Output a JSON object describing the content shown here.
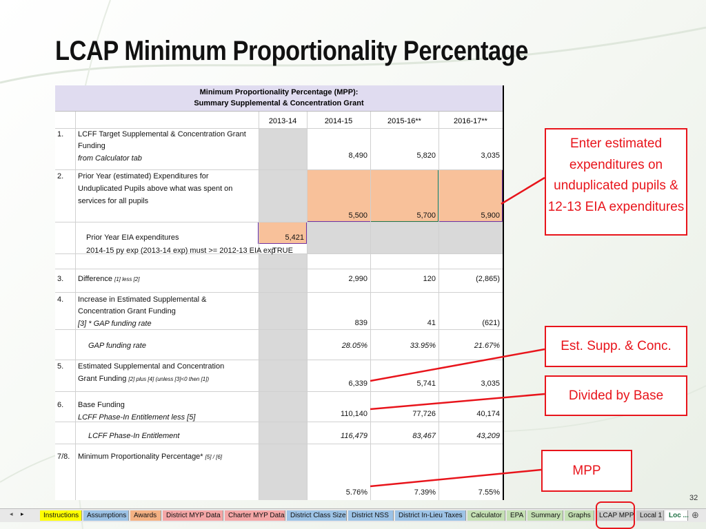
{
  "slide": {
    "title": "LCAP Minimum Proportionality Percentage",
    "page_number": "32"
  },
  "sheet": {
    "header_line1": "Minimum Proportionality Percentage (MPP):",
    "header_line2": "Summary Supplemental & Concentration Grant",
    "columns": [
      "2013-14",
      "2014-15",
      "2015-16**",
      "2016-17**"
    ],
    "rows": {
      "r1": {
        "num": "1.",
        "label1": "LCFF Target Supplemental & Concentration Grant",
        "label2": "Funding",
        "note": "from Calculator tab",
        "v2": "8,490",
        "v3": "5,820",
        "v4": "3,035"
      },
      "r2": {
        "num": "2.",
        "label1": "Prior Year (estimated) Expenditures for",
        "label2": "Unduplicated Pupils above what was spent on",
        "label3": "services for all pupils",
        "v2": "5,500",
        "v3": "5,700",
        "v4": "5,900"
      },
      "eia": {
        "label": "Prior Year EIA expenditures",
        "v1": "5,421",
        "note": "2014-15 py exp (2013-14 exp) must >= 2012-13 EIA exp",
        "check": "TRUE"
      },
      "r3": {
        "num": "3.",
        "label": "Difference",
        "note": "[1] less [2]",
        "v2": "2,990",
        "v3": "120",
        "v4": "(2,865)"
      },
      "r4": {
        "num": "4.",
        "label1": "Increase in Estimated Supplemental &",
        "label2": "Concentration Grant Funding",
        "note": "[3] * GAP funding rate",
        "v2": "839",
        "v3": "41",
        "v4": "(621)"
      },
      "gap": {
        "label": "GAP funding rate",
        "v2": "28.05%",
        "v3": "33.95%",
        "v4": "21.67%"
      },
      "r5": {
        "num": "5.",
        "label1": "Estimated Supplemental and Concentration",
        "label2": "Grant Funding",
        "note": "[2] plus [4] (unless [3]<0 then [1])",
        "v2": "6,339",
        "v3": "5,741",
        "v4": "3,035"
      },
      "r6": {
        "num": "6.",
        "label": "Base Funding",
        "note": "LCFF Phase-In Entitlement less [5]",
        "v2": "110,140",
        "v3": "77,726",
        "v4": "40,174"
      },
      "phase": {
        "label": "LCFF Phase-In Entitlement",
        "v2": "116,479",
        "v3": "83,467",
        "v4": "43,209"
      },
      "r7": {
        "num": "7/8.",
        "label": "Minimum Proportionality Percentage*",
        "note": "[5] / [6]",
        "v2": "5.76%",
        "v3": "7.39%",
        "v4": "7.55%"
      }
    }
  },
  "callouts": {
    "enter": "Enter estimated expenditures on unduplicated pupils & 12-13 EIA expenditures",
    "est": "Est. Supp. & Conc.",
    "divided": "Divided by Base",
    "mpp": "MPP"
  },
  "tabs": [
    {
      "label": "Instructions",
      "color": "#ffff00"
    },
    {
      "label": "Assumptions",
      "color": "#9dc3e6"
    },
    {
      "label": "Awards",
      "color": "#f4b183"
    },
    {
      "label": "District MYP Data",
      "color": "#f4a6a6"
    },
    {
      "label": "Charter MYP Data",
      "color": "#f4a6a6"
    },
    {
      "label": "District Class Size",
      "color": "#9dc3e6"
    },
    {
      "label": "District NSS",
      "color": "#9dc3e6"
    },
    {
      "label": "District In-Lieu Taxes",
      "color": "#9dc3e6"
    },
    {
      "label": "Calculator",
      "color": "#c5e0b4"
    },
    {
      "label": "EPA",
      "color": "#c5e0b4"
    },
    {
      "label": "Summary",
      "color": "#c5e0b4"
    },
    {
      "label": "Graphs",
      "color": "#c5e0b4"
    },
    {
      "label": "LCAP MPP",
      "color": "#c9c9c9"
    },
    {
      "label": "Local 1",
      "color": "#c9c9c9"
    },
    {
      "label": "Loc ...",
      "color": "#ffffff"
    }
  ],
  "nav": {
    "prev": "◂",
    "next": "▸",
    "add": "⊕"
  },
  "colors": {
    "accent": "#e8141b",
    "header": "#e0dcf0",
    "input": "#f8c19a",
    "locked": "#d9d9d9"
  }
}
